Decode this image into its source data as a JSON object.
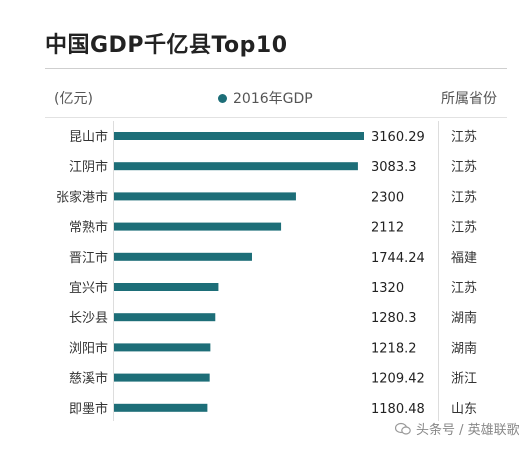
{
  "chart_data": {
    "type": "bar",
    "orientation": "horizontal",
    "title": "中国GDP千亿县Top10",
    "unit_label": "(亿元)",
    "legend": [
      "2016年GDP"
    ],
    "province_header": "所属省份",
    "categories": [
      "昆山市",
      "江阴市",
      "张家港市",
      "常熟市",
      "晋江市",
      "宜兴市",
      "长沙县",
      "浏阳市",
      "慈溪市",
      "即墨市"
    ],
    "values": [
      3160.29,
      3083.3,
      2300,
      2112,
      1744.24,
      1320,
      1280.3,
      1218.2,
      1209.42,
      1180.48
    ],
    "value_labels": [
      "3160.29",
      "3083.3",
      "2300",
      "2112",
      "1744.24",
      "1320",
      "1280.3",
      "1218.2",
      "1209.42",
      "1180.48"
    ],
    "provinces": [
      "江苏",
      "江苏",
      "江苏",
      "江苏",
      "福建",
      "江苏",
      "湖南",
      "湖南",
      "浙江",
      "山东"
    ],
    "series": [
      {
        "name": "2016年GDP",
        "values": [
          3160.29,
          3083.3,
          2300,
          2112,
          1744.24,
          1320,
          1280.3,
          1218.2,
          1209.42,
          1180.48
        ]
      }
    ],
    "xlim": [
      0,
      3160.29
    ],
    "legend_position": "top-center",
    "grid": false
  },
  "colors": {
    "bar": "#1d6e78",
    "text": "#333333"
  },
  "watermark": {
    "text": "头条号 / 英雄联歌",
    "icon": "chat-bubble-icon"
  }
}
